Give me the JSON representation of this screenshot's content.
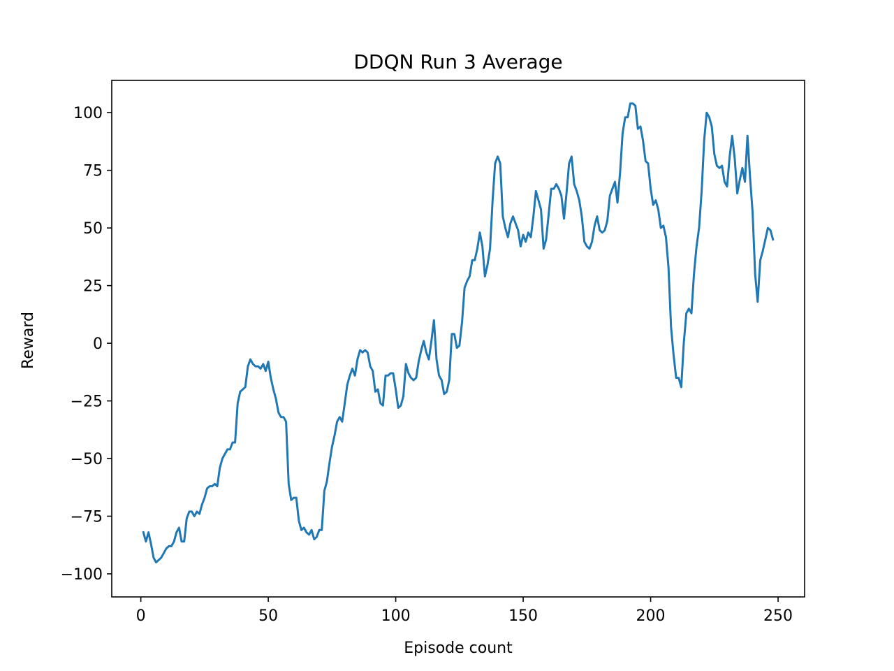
{
  "chart_data": {
    "type": "line",
    "title": "DDQN Run 3 Average",
    "xlabel": "Episode count",
    "ylabel": "Reward",
    "xlim": [
      -11.4,
      260.4
    ],
    "ylim": [
      -110,
      114
    ],
    "xticks": [
      0,
      50,
      100,
      150,
      200,
      250
    ],
    "yticks": [
      -100,
      -75,
      -50,
      -25,
      0,
      25,
      50,
      75,
      100
    ],
    "xtick_labels": [
      "0",
      "50",
      "100",
      "150",
      "200",
      "250"
    ],
    "ytick_labels": [
      "−100",
      "−75",
      "−50",
      "−25",
      "0",
      "25",
      "50",
      "75",
      "100"
    ],
    "grid": false,
    "legend": "none",
    "color": "#1f77b4",
    "series": [
      {
        "x": [
          1,
          2,
          3,
          4,
          5,
          6,
          7,
          8,
          9,
          10,
          11,
          12,
          13,
          14,
          15,
          16,
          17,
          18,
          19,
          20,
          21,
          22,
          23,
          24,
          25,
          26,
          27,
          28,
          29,
          30,
          31,
          32,
          33,
          34,
          35,
          36,
          37,
          38,
          39,
          40,
          41,
          42,
          43,
          44,
          45,
          46,
          47,
          48,
          49,
          50,
          51,
          52,
          53,
          54,
          55,
          56,
          57,
          58,
          59,
          60,
          61,
          62,
          63,
          64,
          65,
          66,
          67,
          68,
          69,
          70,
          71,
          72,
          73,
          74,
          75,
          76,
          77,
          78,
          79,
          80,
          81,
          82,
          83,
          84,
          85,
          86,
          87,
          88,
          89,
          90,
          91,
          92,
          93,
          94,
          95,
          96,
          97,
          98,
          99,
          100,
          101,
          102,
          103,
          104,
          105,
          106,
          107,
          108,
          109,
          110,
          111,
          112,
          113,
          114,
          115,
          116,
          117,
          118,
          119,
          120,
          121,
          122,
          123,
          124,
          125,
          126,
          127,
          128,
          129,
          130,
          131,
          132,
          133,
          134,
          135,
          136,
          137,
          138,
          139,
          140,
          141,
          142,
          143,
          144,
          145,
          146,
          147,
          148,
          149,
          150,
          151,
          152,
          153,
          154,
          155,
          156,
          157,
          158,
          159,
          160,
          161,
          162,
          163,
          164,
          165,
          166,
          167,
          168,
          169,
          170,
          171,
          172,
          173,
          174,
          175,
          176,
          177,
          178,
          179,
          180,
          181,
          182,
          183,
          184,
          185,
          186,
          187,
          188,
          189,
          190,
          191,
          192,
          193,
          194,
          195,
          196,
          197,
          198,
          199,
          200,
          201,
          202,
          203,
          204,
          205,
          206,
          207,
          208,
          209,
          210,
          211,
          212,
          213,
          214,
          215,
          216,
          217,
          218,
          219,
          220,
          221,
          222,
          223,
          224,
          225,
          226,
          227,
          228,
          229,
          230,
          231,
          232,
          233,
          234,
          235,
          236,
          237,
          238,
          239,
          240,
          241,
          242,
          243,
          244,
          245,
          246,
          247,
          248
        ],
        "y": [
          -82,
          -86,
          -82,
          -87,
          -93,
          -95,
          -94,
          -93,
          -91,
          -89,
          -88,
          -88,
          -86,
          -82,
          -80,
          -86,
          -86,
          -76,
          -73,
          -73,
          -75,
          -73,
          -74,
          -70,
          -67,
          -63,
          -62,
          -62,
          -61,
          -62,
          -54,
          -50,
          -48,
          -46,
          -46,
          -43,
          -43,
          -26,
          -21,
          -20,
          -19,
          -10,
          -7,
          -9,
          -10,
          -10,
          -11,
          -9,
          -12,
          -8,
          -15,
          -20,
          -24,
          -30,
          -32,
          -32,
          -34,
          -61,
          -68,
          -67,
          -67,
          -77,
          -81,
          -80,
          -82,
          -83,
          -81,
          -85,
          -84,
          -81,
          -81,
          -64,
          -60,
          -52,
          -45,
          -40,
          -34,
          -32,
          -34,
          -26,
          -18,
          -14,
          -11,
          -14,
          -7,
          -3,
          -4,
          -3,
          -4,
          -10,
          -12,
          -21,
          -20,
          -26,
          -27,
          -14,
          -14,
          -13,
          -13,
          -20,
          -28,
          -27,
          -23,
          -9,
          -13,
          -15,
          -16,
          -15,
          -8,
          -3,
          1,
          -4,
          -7,
          1,
          10,
          -7,
          -14,
          -16,
          -22,
          -21,
          -16,
          4,
          4,
          -2,
          -1,
          9,
          24,
          27,
          29,
          36,
          36,
          41,
          48,
          42,
          29,
          34,
          41,
          62,
          78,
          81,
          78,
          55,
          50,
          46,
          52,
          55,
          52,
          49,
          42,
          47,
          44,
          48,
          46,
          55,
          66,
          62,
          58,
          41,
          45,
          56,
          67,
          67,
          69,
          67,
          64,
          54,
          65,
          78,
          81,
          69,
          66,
          62,
          55,
          44,
          42,
          41,
          44,
          51,
          55,
          49,
          48,
          49,
          53,
          64,
          67,
          70,
          61,
          74,
          91,
          98,
          98,
          104,
          104,
          103,
          93,
          94,
          88,
          79,
          78,
          67,
          60,
          62,
          58,
          50,
          51,
          46,
          33,
          7,
          -5,
          -15,
          -15,
          -19,
          0,
          13,
          15,
          13,
          30,
          42,
          50,
          66,
          88,
          100,
          98,
          94,
          82,
          77,
          76,
          77,
          70,
          68,
          81,
          90,
          80,
          65,
          71,
          76,
          70,
          90,
          72,
          57,
          30,
          18,
          36,
          40,
          45,
          50,
          49,
          45
        ]
      }
    ]
  }
}
